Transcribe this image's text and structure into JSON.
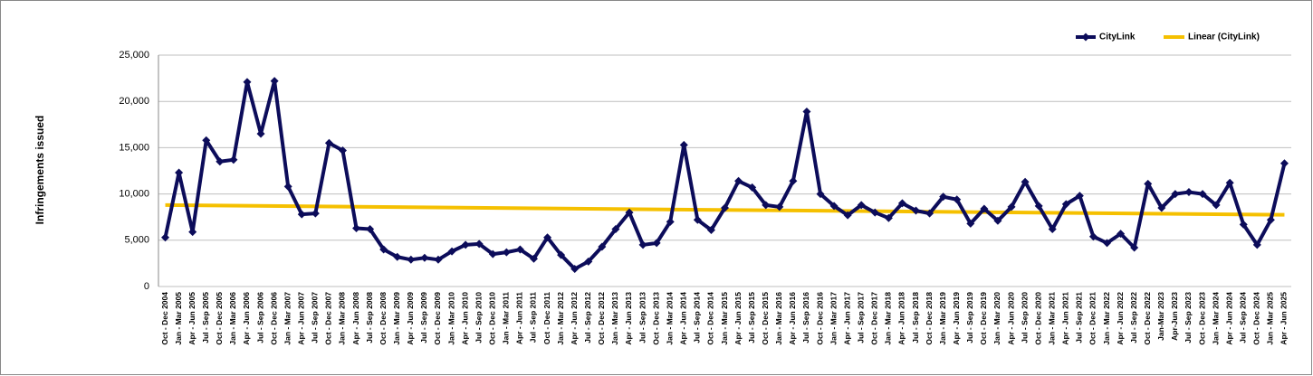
{
  "chart_data": {
    "type": "line",
    "y_label": "Infringements issued",
    "categories": [
      "Oct - Dec 2004",
      "Jan - Mar 2005",
      "Apr - Jun 2005",
      "Jul - Sep 2005",
      "Oct - Dec 2005",
      "Jan - Mar 2006",
      "Apr - Jun 2006",
      "Jul - Sep 2006",
      "Oct - Dec 2006",
      "Jan - Mar 2007",
      "Apr - Jun 2007",
      "Jul - Sep 2007",
      "Oct - Dec 2007",
      "Jan - Mar 2008",
      "Apr - Jun 2008",
      "Jul - Sep 2008",
      "Oct - Dec 2008",
      "Jan - Mar 2009",
      "Apr - Jun 2009",
      "Jul - Sep 2009",
      "Oct - Dec 2009",
      "Jan - Mar 2010",
      "Apr - Jun 2010",
      "Jul - Sep 2010",
      "Oct - Dec 2010",
      "Jan - Mar 2011",
      "Apr - Jun 2011",
      "Jul - Sep 2011",
      "Oct - Dec 2011",
      "Jan - Mar 2012",
      "Apr - Jun 2012",
      "Jul - Sep 2012",
      "Oct - Dec 2012",
      "Jan - Mar 2013",
      "Apr - Jun 2013",
      "Jul - Sep 2013",
      "Oct - Dec 2013",
      "Jan - Mar 2014",
      "Apr - Jun 2014",
      "Jul - Sep 2014",
      "Oct - Dec 2014",
      "Jan - Mar 2015",
      "Apr - Jun 2015",
      "Jul - Sep 2015",
      "Oct - Dec 2015",
      "Jan - Mar 2016",
      "Apr - Jun 2016",
      "Jul - Sep 2016",
      "Oct - Dec 2016",
      "Jan - Mar 2017",
      "Apr - Jun 2017",
      "Jul - Sep 2017",
      "Oct - Dec 2017",
      "Jan - Mar 2018",
      "Apr - Jun 2018",
      "Jul - Sep 2018",
      "Oct - Dec 2018",
      "Jan - Mar 2019",
      "Apr - Jun 2019",
      "Jul - Sep 2019",
      "Oct - Dec 2019",
      "Jan - Mar 2020",
      "Apr - Jun 2020",
      "Jul - Sep 2020",
      "Oct - Dec 2020",
      "Jan - Mar 2021",
      "Apr - Jun 2021",
      "Jul - Sep 2021",
      "Oct - Dec 2021",
      "Jan - Mar 2022",
      "Apr - Jun 2022",
      "Jul - Sep 2022",
      "Oct - Dec 2022",
      "Jan-Mar 2023",
      "Apr-Jun 2023",
      "Jul - Sep 2023",
      "Oct - Dec 2023",
      "Jan - Mar 2024",
      "Apr - Jun 2024",
      "Jul - Sep 2024",
      "Oct - Dec 2024",
      "Jan - Mar 2025",
      "Apr - Jun 2025"
    ],
    "series": [
      {
        "name": "CityLink",
        "color": "#0c0c5a",
        "values": [
          5300,
          12300,
          5900,
          15800,
          13500,
          13700,
          22100,
          16500,
          22200,
          10800,
          7800,
          7900,
          15500,
          14700,
          6300,
          6200,
          4000,
          3200,
          2900,
          3100,
          2900,
          3800,
          4500,
          4600,
          3500,
          3700,
          4000,
          3000,
          5300,
          3400,
          1900,
          2700,
          4300,
          6200,
          8000,
          4500,
          4700,
          7000,
          15300,
          7200,
          6100,
          8500,
          11400,
          10700,
          8800,
          8600,
          11400,
          18900,
          10000,
          8700,
          7700,
          8800,
          8000,
          7400,
          9000,
          8200,
          7900,
          9700,
          9400,
          6800,
          8400,
          7100,
          8600,
          11300,
          8700,
          6200,
          8900,
          9800,
          5400,
          4700,
          5700,
          4200,
          11100,
          8500,
          10000,
          10200,
          10000,
          8800,
          11200,
          6700,
          4500,
          7200,
          13300
        ]
      }
    ],
    "trendline": {
      "name": "Linear (CityLink)",
      "color": "#f5c000"
    },
    "ylim": [
      0,
      25000
    ],
    "yticks": [
      0,
      {
        "value": 5000,
        "label": "5,000"
      },
      {
        "value": 10000,
        "label": "10,000"
      },
      {
        "value": 15000,
        "label": "15,000"
      },
      {
        "value": 20000,
        "label": "20,000"
      },
      {
        "value": 25000,
        "label": "25,000"
      }
    ],
    "grid": true,
    "legend": "top-right"
  }
}
